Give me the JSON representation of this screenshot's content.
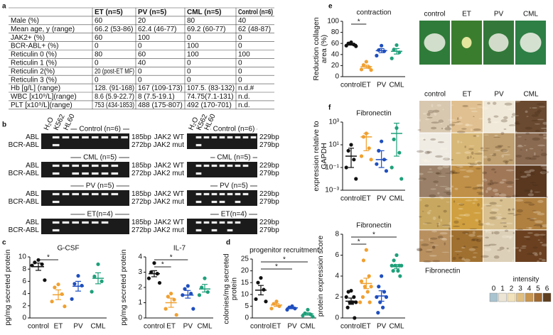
{
  "panel_labels": [
    "a",
    "b",
    "c",
    "d",
    "e",
    "f"
  ],
  "table": {
    "headers": [
      "ET (n=5)",
      "PV (n=5)",
      "CML (n=5)",
      "Control (n=6)"
    ],
    "rows": [
      [
        "Male (%)",
        "60",
        "20",
        "80",
        "40"
      ],
      [
        "Mean age, y (range)",
        "66.2 (53-86)",
        "62.4 (46-77)",
        "69.2 (60-77)",
        "62 (48-87)"
      ],
      [
        "JAK2+ (%)",
        "60",
        "100",
        "0",
        "0"
      ],
      [
        "BCR-ABL+ (%)",
        "0",
        "0",
        "100",
        "0"
      ],
      [
        "Reticulin 0 (%)",
        "80",
        "60",
        "100",
        "100"
      ],
      [
        "Reticulin 1 (%)",
        "0",
        "40",
        "0",
        "0"
      ],
      [
        "Reticulin 2(%)",
        "20 (post-ET MF)",
        "0",
        "0",
        "0"
      ],
      [
        "Reticulin 3 (%)",
        "0",
        "0",
        "0",
        "0"
      ],
      [
        "Hb [g/L] (range)",
        "128. (91-168)",
        "167 (109-173)",
        "107.5. (83-132)",
        "n.d.#"
      ],
      [
        "WBC [x10⁹/L](range)",
        "8.6 (5.9-22.7)",
        "8 (7.5-19.1)",
        "74.75(7.1-131)",
        "n.d."
      ],
      [
        "PLT [x10⁹/L](range)",
        "753 (434-1853)",
        "488 (175-807)",
        "492 (170-701)",
        "n.d."
      ]
    ]
  },
  "gels": {
    "lanes": [
      "H₂O",
      "K562",
      "HL60"
    ],
    "groups": [
      "Control (n=6)",
      "CML (n=5)",
      "PV (n=5)",
      "ET(n=4)"
    ],
    "left_rows": [
      "ABL",
      "BCR-ABL"
    ],
    "left_sizes": [
      "185bp",
      "272bp"
    ],
    "right_rows": [
      "JAK2 WT",
      "JAK2 mut"
    ],
    "right_sizes": [
      "229bp",
      "279bp"
    ]
  },
  "photos": {
    "labels": [
      "control",
      "ET",
      "PV",
      "CML"
    ]
  },
  "micrographs": {
    "columns": [
      "control",
      "ET",
      "PV",
      "CML"
    ],
    "caption": "Fibronectin",
    "legend_title": "intensity",
    "legend_levels": [
      "0",
      "1",
      "2",
      "3",
      "4",
      "5",
      "6"
    ]
  },
  "chart_data": [
    {
      "type": "dot",
      "title": "G-CSF",
      "y_label": "pg/mg secreted protein",
      "ylim": [
        0,
        10
      ],
      "yticks": [
        0,
        2,
        4,
        6,
        8,
        10
      ],
      "groups": [
        {
          "label": "control",
          "color": "#111111",
          "values": [
            9.5,
            9.1,
            8.8,
            8.6,
            6.2
          ],
          "mean": 8.4,
          "low": 7.8,
          "high": 9.0
        },
        {
          "label": "ET",
          "color": "#f0a030",
          "values": [
            5.5,
            5.0,
            3.9,
            2.7,
            1.9
          ],
          "mean": 3.8,
          "low": 3.0,
          "high": 4.6
        },
        {
          "label": "PV",
          "color": "#1f4fbf",
          "values": [
            6.9,
            5.6,
            5.3,
            3.1
          ],
          "mean": 5.2,
          "low": 4.4,
          "high": 6.0
        },
        {
          "label": "CML",
          "color": "#1fa07a",
          "values": [
            8.8,
            6.8,
            6.0,
            4.3
          ],
          "mean": 6.5,
          "low": 5.6,
          "high": 7.4
        }
      ],
      "significance": [
        {
          "between": [
            0,
            1
          ],
          "label": "*"
        }
      ]
    },
    {
      "type": "dot",
      "title": "IL-7",
      "y_label": "pg/mg secreted protein",
      "ylim": [
        0,
        4
      ],
      "yticks": [
        0,
        1,
        2,
        3,
        4
      ],
      "groups": [
        {
          "label": "control",
          "color": "#111111",
          "values": [
            3.6,
            3.0,
            2.9,
            2.6,
            2.3
          ],
          "mean": 2.9,
          "low": 2.7,
          "high": 3.1
        },
        {
          "label": "ET",
          "color": "#f0a030",
          "values": [
            1.6,
            1.4,
            1.2,
            0.6,
            0.2
          ],
          "mean": 1.0,
          "low": 0.7,
          "high": 1.3
        },
        {
          "label": "PV",
          "color": "#1f4fbf",
          "values": [
            2.1,
            1.9,
            1.6,
            1.5,
            0.6
          ],
          "mean": 1.5,
          "low": 1.3,
          "high": 1.8
        },
        {
          "label": "CML",
          "color": "#1fa07a",
          "values": [
            2.6,
            2.0,
            1.7,
            1.5
          ],
          "mean": 1.9,
          "low": 1.7,
          "high": 2.2
        }
      ],
      "significance": [
        {
          "between": [
            0,
            2
          ],
          "label": "*"
        },
        {
          "between": [
            0,
            1
          ],
          "label": "*"
        }
      ]
    },
    {
      "type": "dot",
      "title": "progenitor recruitment",
      "y_label": "colonies/mg secreted protein",
      "ylim": [
        0,
        25
      ],
      "yticks": [
        0,
        5,
        10,
        15,
        20,
        25
      ],
      "groups": [
        {
          "label": "control",
          "color": "#111111",
          "values": [
            17,
            15,
            12,
            8,
            7
          ],
          "mean": 11.8,
          "low": 9.8,
          "high": 13.8
        },
        {
          "label": "ET",
          "color": "#f0a030",
          "values": [
            7,
            6,
            5,
            4
          ],
          "mean": 5.5,
          "low": 4.9,
          "high": 6.1
        },
        {
          "label": "PV",
          "color": "#1f4fbf",
          "values": [
            5,
            4.5,
            4,
            3.5
          ],
          "mean": 4.3,
          "low": 3.9,
          "high": 4.6
        },
        {
          "label": "CML",
          "color": "#1fa07a",
          "values": [
            3.5,
            2,
            1.5,
            1,
            0.5
          ],
          "mean": 1.7,
          "low": 1.2,
          "high": 2.2
        }
      ],
      "significance": [
        {
          "between": [
            0,
            3
          ],
          "label": "*"
        },
        {
          "between": [
            0,
            2
          ],
          "label": "*"
        }
      ]
    },
    {
      "type": "dot",
      "title": "contraction",
      "y_label": "Reduction collagen area (%)",
      "ylim": [
        0,
        100
      ],
      "yticks": [
        0,
        20,
        40,
        60,
        80,
        100
      ],
      "groups": [
        {
          "label": "control",
          "color": "#111111",
          "values": [
            62,
            60,
            58,
            56,
            55
          ],
          "mean": 58.2,
          "low": 56.9,
          "high": 59.5
        },
        {
          "label": "ET",
          "color": "#f0a030",
          "values": [
            27,
            21,
            17,
            13,
            12
          ],
          "mean": 18,
          "low": 15.2,
          "high": 20.8
        },
        {
          "label": "PV",
          "color": "#1f4fbf",
          "values": [
            56,
            48,
            46,
            38
          ],
          "mean": 47,
          "low": 43.3,
          "high": 50.7
        },
        {
          "label": "CML",
          "color": "#1fa07a",
          "values": [
            57,
            49,
            44,
            33
          ],
          "mean": 45.8,
          "low": 40.8,
          "high": 50.8
        }
      ],
      "significance": [
        {
          "between": [
            0,
            1
          ],
          "label": "*"
        }
      ]
    },
    {
      "type": "dot",
      "title": "Fibronectin",
      "y_label": "expression relative to GAPDH",
      "log_scale": true,
      "ylim": [
        0.001,
        1000
      ],
      "yticks": [
        {
          "value": 0.001,
          "label": "10⁻³"
        },
        {
          "value": 0.1,
          "label": "10⁻¹"
        },
        {
          "value": 10,
          "label": "10¹"
        },
        {
          "value": 1000,
          "label": "10³"
        }
      ],
      "groups": [
        {
          "label": "control",
          "color": "#111111",
          "values": [
            10,
            3,
            0.5,
            0.1,
            0.01
          ],
          "mean": 1,
          "low": 0.1,
          "high": 5
        },
        {
          "label": "ET",
          "color": "#f0a030",
          "values": [
            100,
            50,
            5,
            1,
            0.5
          ],
          "mean": 50,
          "low": 3,
          "high": 100
        },
        {
          "label": "PV",
          "color": "#1f4fbf",
          "values": [
            20,
            3,
            0.5,
            0.2,
            0.05
          ],
          "mean": 0.5,
          "low": 0.1,
          "high": 3
        },
        {
          "label": "CML",
          "color": "#1fa07a",
          "values": [
            300,
            30,
            2,
            0.1,
            0.01
          ],
          "mean": 100,
          "low": 1,
          "high": 800
        }
      ]
    },
    {
      "type": "dot",
      "title": "Fibronectin",
      "y_label": "protein expression score",
      "ylim": [
        0,
        8
      ],
      "yticks": [
        0,
        2,
        4,
        6,
        8
      ],
      "groups": [
        {
          "label": "control",
          "color": "#111111",
          "values": [
            2.6,
            2.5,
            2,
            2,
            1.5,
            1.5,
            1.5,
            1,
            0
          ],
          "mean": 1.6,
          "low": 1.3,
          "high": 1.9
        },
        {
          "label": "ET",
          "color": "#f0a030",
          "values": [
            6.5,
            5.5,
            4,
            3.5,
            3,
            3,
            2.5,
            2,
            1.5,
            1.5
          ],
          "mean": 3.3,
          "low": 2.8,
          "high": 3.8
        },
        {
          "label": "PV",
          "color": "#1f4fbf",
          "values": [
            4,
            3,
            2.5,
            2,
            2,
            1.5,
            1,
            0.5
          ],
          "mean": 2.1,
          "low": 1.6,
          "high": 2.6
        },
        {
          "label": "CML",
          "color": "#1fa07a",
          "values": [
            6,
            5.5,
            5,
            5,
            5,
            5,
            4.5,
            4.5,
            4
          ],
          "mean": 4.9,
          "low": 4.7,
          "high": 5.1
        }
      ],
      "significance": [
        {
          "between": [
            0,
            3
          ],
          "label": "*"
        },
        {
          "between": [
            0,
            1
          ],
          "label": "*"
        }
      ]
    }
  ]
}
